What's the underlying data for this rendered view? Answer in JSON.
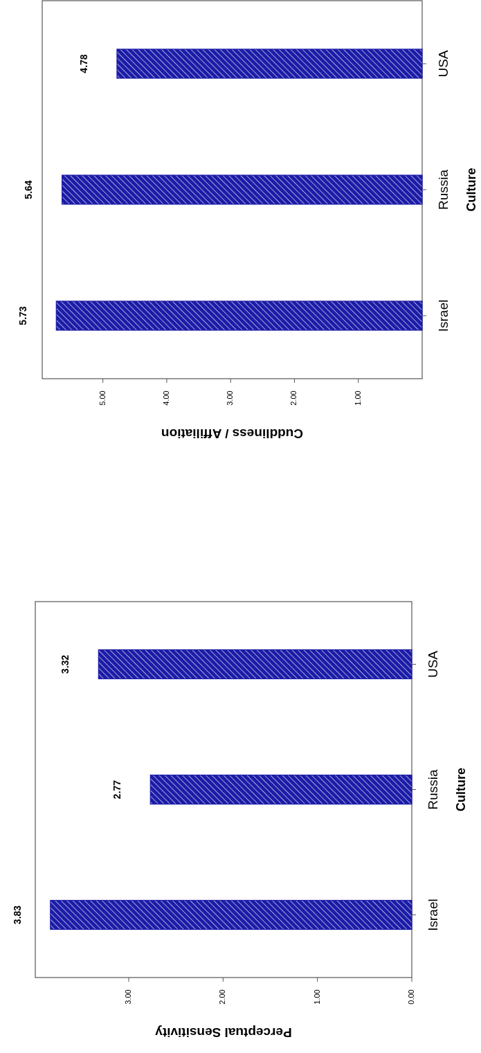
{
  "chart_data": [
    {
      "type": "bar",
      "orientation": "horizontal",
      "categories": [
        "USA",
        "Russia",
        "Israel"
      ],
      "values": [
        4.78,
        5.64,
        5.73
      ],
      "color": "#1c1ca8",
      "xlabel": "Cuddliness / Affiliation",
      "ylabel": "Culture",
      "xlim": [
        5.95,
        0
      ],
      "xticks": [
        {
          "value": 1,
          "label": "1.00"
        },
        {
          "value": 2,
          "label": "2.00"
        },
        {
          "value": 3,
          "label": "3.00"
        },
        {
          "value": 4,
          "label": "4.00"
        },
        {
          "value": 5,
          "label": "5.00"
        }
      ],
      "data_labels": true
    },
    {
      "type": "bar",
      "orientation": "horizontal",
      "categories": [
        "USA",
        "Russia",
        "Israel"
      ],
      "values": [
        3.32,
        2.77,
        3.83
      ],
      "color": "#1c1ca8",
      "xlabel": "Perceptual Sensitivity",
      "ylabel": "Culture",
      "xlim": [
        3.99,
        0
      ],
      "xticks": [
        {
          "value": 0,
          "label": "0.00"
        },
        {
          "value": 1,
          "label": "1.00"
        },
        {
          "value": 2,
          "label": "2.00"
        },
        {
          "value": 3,
          "label": "3.00"
        }
      ],
      "data_labels": true
    }
  ]
}
